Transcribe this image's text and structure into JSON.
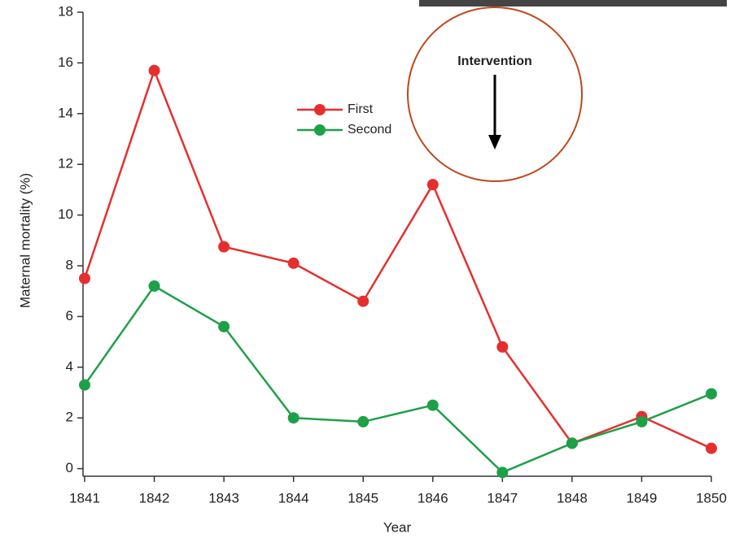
{
  "chart_data": {
    "type": "line",
    "x": [
      1841,
      1842,
      1843,
      1844,
      1845,
      1846,
      1847,
      1848,
      1849,
      1850
    ],
    "series": [
      {
        "name": "First",
        "color": "#e52f2f",
        "values": [
          7.5,
          15.7,
          8.75,
          8.1,
          6.6,
          11.2,
          4.8,
          1.0,
          2.05,
          0.8
        ]
      },
      {
        "name": "Second",
        "color": "#1ea048",
        "values": [
          3.3,
          7.2,
          5.6,
          2.0,
          1.85,
          2.5,
          -0.15,
          1.0,
          1.85,
          2.95
        ]
      }
    ],
    "xlabel": "Year",
    "ylabel": "Maternal mortality (%)",
    "xlim": [
      1841,
      1850
    ],
    "xticks": [
      1841,
      1842,
      1843,
      1844,
      1845,
      1846,
      1847,
      1848,
      1849,
      1850
    ],
    "ylim": [
      -0.3,
      18
    ],
    "yticks": [
      0,
      2,
      4,
      6,
      8,
      10,
      12,
      14,
      16,
      18
    ],
    "grid": false,
    "legend": "upper-center",
    "annotation": "Intervention"
  }
}
